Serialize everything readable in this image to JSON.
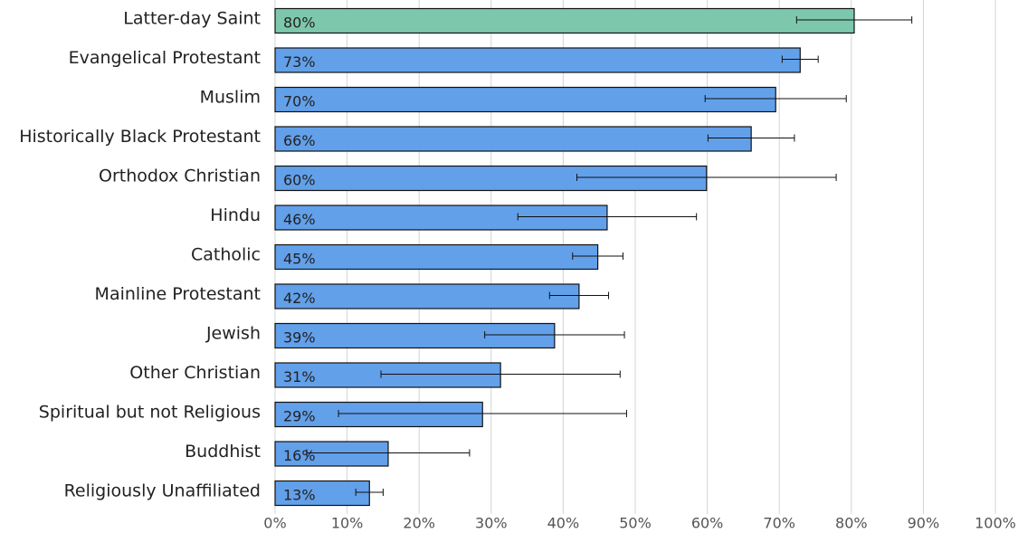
{
  "chart_data": {
    "type": "hbar",
    "categories": [
      "Latter-day Saint",
      "Evangelical Protestant",
      "Muslim",
      "Historically Black Protestant",
      "Orthodox Christian",
      "Hindu",
      "Catholic",
      "Mainline Protestant",
      "Jewish",
      "Other Christian",
      "Spiritual but not Religious",
      "Buddhist",
      "Religiously Unaffiliated"
    ],
    "values": [
      80.4,
      72.9,
      69.5,
      66.1,
      59.9,
      46.1,
      44.8,
      42.2,
      38.8,
      31.3,
      28.8,
      15.7,
      13.1
    ],
    "value_labels": [
      "80%",
      "73%",
      "70%",
      "66%",
      "60%",
      "46%",
      "45%",
      "42%",
      "39%",
      "31%",
      "29%",
      "16%",
      "13%"
    ],
    "errors": [
      8,
      2.5,
      9.8,
      6,
      18,
      12.4,
      3.5,
      4.1,
      9.7,
      16.6,
      20,
      11.3,
      1.9
    ],
    "colors": [
      "#7dc8ad",
      "#63a0ea",
      "#63a0ea",
      "#63a0ea",
      "#63a0ea",
      "#63a0ea",
      "#63a0ea",
      "#63a0ea",
      "#63a0ea",
      "#63a0ea",
      "#63a0ea",
      "#63a0ea",
      "#63a0ea"
    ],
    "xlim": [
      0,
      100
    ],
    "xticks": [
      {
        "value": 0,
        "label": "0%"
      },
      {
        "value": 10,
        "label": "10%"
      },
      {
        "value": 20,
        "label": "20%"
      },
      {
        "value": 30,
        "label": "30%"
      },
      {
        "value": 40,
        "label": "40%"
      },
      {
        "value": 50,
        "label": "50%"
      },
      {
        "value": 60,
        "label": "60%"
      },
      {
        "value": 70,
        "label": "70%"
      },
      {
        "value": 80,
        "label": "80%"
      },
      {
        "value": 90,
        "label": "90%"
      },
      {
        "value": 100,
        "label": "100%"
      }
    ],
    "grid": true
  }
}
